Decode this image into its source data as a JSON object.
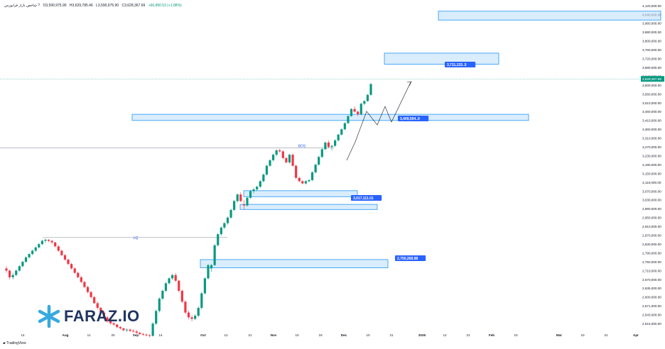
{
  "header": {
    "title": "شاخص بازار فرابورس ?",
    "open": "O3,590,975.90",
    "high": "H3,629,785.46",
    "low": "L3,590,975.90",
    "close": "C3,628,367.69",
    "change": "+66,890.53 (+1.88%)"
  },
  "branding": {
    "logo_text": "FARAZ.IO",
    "platform": "TradingView",
    "accent": "#1f3561",
    "logo_icon_color": "#36a9e1"
  },
  "colors": {
    "up": "#089981",
    "down": "#f23645",
    "zone_fill": "#bbdefb",
    "zone_border": "#2196f3",
    "label_bg": "#2962ff",
    "price_line": "#089981"
  },
  "chart_data": {
    "type": "candlestick",
    "ylim": [
      2500000,
      4140000
    ],
    "y_ticks": [
      "4,120,000.00",
      "4,040,000.00",
      "3,960,000.00",
      "3,880,000.00",
      "3,800,000.00",
      "3,760,000.00",
      "3,720,000.00",
      "3,680,000.00",
      "3,640,000.00",
      "3,600,000.00",
      "3,560,000.00",
      "3,510,000.00",
      "3,460,000.00",
      "3,410,000.00",
      "3,360,000.00",
      "3,310,000.00",
      "3,270,000.00",
      "3,230,000.00",
      "3,190,000.00",
      "3,150,000.00",
      "3,110,000.00",
      "3,070,000.00",
      "3,030,000.00",
      "2,990,000.00",
      "2,950,000.00",
      "2,910,000.00",
      "2,870,000.00",
      "2,830,000.00",
      "2,790,000.00",
      "2,750,000.00",
      "2,710,000.00",
      "2,670,000.00",
      "2,635,000.00",
      "2,600,000.00",
      "2,571,000.00",
      "2,543,000.00",
      "2,515,000.00"
    ],
    "x_ticks": [
      "14",
      "Aug",
      "11",
      "20",
      "Sep",
      "14",
      "Oct",
      "12",
      "21",
      "Nov",
      "10",
      "19",
      "Dec",
      "10",
      "21",
      "2026",
      "12",
      "21",
      "Feb",
      "10",
      "Mar",
      "10",
      "21",
      "Apr"
    ],
    "last_price": "3,628,367.69",
    "candles": [
      [
        2720000,
        2730000,
        2700000,
        2710000
      ],
      [
        2710000,
        2715000,
        2670000,
        2680000
      ],
      [
        2680000,
        2700000,
        2670000,
        2690000
      ],
      [
        2690000,
        2715000,
        2685000,
        2710000
      ],
      [
        2710000,
        2735000,
        2705000,
        2730000
      ],
      [
        2730000,
        2755000,
        2725000,
        2750000
      ],
      [
        2750000,
        2775000,
        2745000,
        2770000
      ],
      [
        2770000,
        2790000,
        2765000,
        2785000
      ],
      [
        2785000,
        2805000,
        2780000,
        2800000
      ],
      [
        2800000,
        2820000,
        2795000,
        2815000
      ],
      [
        2815000,
        2835000,
        2810000,
        2830000
      ],
      [
        2830000,
        2850000,
        2825000,
        2845000
      ],
      [
        2845000,
        2855000,
        2835000,
        2850000
      ],
      [
        2850000,
        2852000,
        2838000,
        2845000
      ],
      [
        2845000,
        2848000,
        2830000,
        2838000
      ],
      [
        2838000,
        2840000,
        2815000,
        2820000
      ],
      [
        2820000,
        2825000,
        2795000,
        2800000
      ],
      [
        2800000,
        2805000,
        2775000,
        2780000
      ],
      [
        2780000,
        2785000,
        2755000,
        2760000
      ],
      [
        2760000,
        2765000,
        2735000,
        2740000
      ],
      [
        2740000,
        2745000,
        2715000,
        2720000
      ],
      [
        2720000,
        2725000,
        2695000,
        2700000
      ],
      [
        2700000,
        2705000,
        2675000,
        2680000
      ],
      [
        2680000,
        2685000,
        2655000,
        2660000
      ],
      [
        2660000,
        2665000,
        2635000,
        2640000
      ],
      [
        2640000,
        2645000,
        2615000,
        2620000
      ],
      [
        2620000,
        2625000,
        2595000,
        2600000
      ],
      [
        2600000,
        2605000,
        2578000,
        2580000
      ],
      [
        2580000,
        2585000,
        2560000,
        2565000
      ],
      [
        2565000,
        2568000,
        2545000,
        2550000
      ],
      [
        2550000,
        2555000,
        2530000,
        2535000
      ],
      [
        2535000,
        2540000,
        2518000,
        2522000
      ],
      [
        2522000,
        2528000,
        2512000,
        2516000
      ],
      [
        2516000,
        2520000,
        2508000,
        2512000
      ],
      [
        2512000,
        2514000,
        2500000,
        2504000
      ],
      [
        2504000,
        2508000,
        2496000,
        2500000
      ],
      [
        2500000,
        2502000,
        2490000,
        2494000
      ],
      [
        2494000,
        2500000,
        2488000,
        2496000
      ],
      [
        2496000,
        2500000,
        2488000,
        2492000
      ],
      [
        2492000,
        2498000,
        2486000,
        2490000
      ],
      [
        2490000,
        2495000,
        2482000,
        2486000
      ],
      [
        2486000,
        2490000,
        2478000,
        2482000
      ],
      [
        2482000,
        2486000,
        2476000,
        2480000
      ],
      [
        2480000,
        2484000,
        2474000,
        2478000
      ],
      [
        2478000,
        2482000,
        2472000,
        2476000
      ],
      [
        2476000,
        2520000,
        2474000,
        2515000
      ],
      [
        2515000,
        2560000,
        2510000,
        2555000
      ],
      [
        2555000,
        2600000,
        2550000,
        2595000
      ],
      [
        2595000,
        2630000,
        2590000,
        2625000
      ],
      [
        2625000,
        2660000,
        2620000,
        2655000
      ],
      [
        2655000,
        2680000,
        2650000,
        2675000
      ],
      [
        2675000,
        2695000,
        2668000,
        2690000
      ],
      [
        2690000,
        2700000,
        2660000,
        2665000
      ],
      [
        2665000,
        2668000,
        2620000,
        2625000
      ],
      [
        2625000,
        2630000,
        2580000,
        2585000
      ],
      [
        2585000,
        2590000,
        2545000,
        2550000
      ],
      [
        2550000,
        2556000,
        2528000,
        2535000
      ],
      [
        2535000,
        2542000,
        2522000,
        2530000
      ],
      [
        2530000,
        2545000,
        2526000,
        2540000
      ],
      [
        2540000,
        2570000,
        2536000,
        2565000
      ],
      [
        2565000,
        2620000,
        2560000,
        2615000
      ],
      [
        2615000,
        2680000,
        2610000,
        2675000
      ],
      [
        2675000,
        2740000,
        2670000,
        2735000
      ],
      [
        2720000,
        2740000,
        2705000,
        2735000
      ],
      [
        2735000,
        2830000,
        2730000,
        2825000
      ],
      [
        2825000,
        2880000,
        2820000,
        2875000
      ],
      [
        2875000,
        2910000,
        2868000,
        2905000
      ],
      [
        2905000,
        2930000,
        2898000,
        2925000
      ],
      [
        2925000,
        2955000,
        2918000,
        2950000
      ],
      [
        2950000,
        2990000,
        2945000,
        2985000
      ],
      [
        2985000,
        3030000,
        2980000,
        3025000
      ],
      [
        3025000,
        3060000,
        3018000,
        3055000
      ],
      [
        3055000,
        3065000,
        3020000,
        3025000
      ],
      [
        3010000,
        3030000,
        2985000,
        3005000
      ],
      [
        3005000,
        3045000,
        3000000,
        3040000
      ],
      [
        3040000,
        3075000,
        3035000,
        3070000
      ],
      [
        3070000,
        3085000,
        3060000,
        3078000
      ],
      [
        3078000,
        3095000,
        3070000,
        3090000
      ],
      [
        3090000,
        3120000,
        3085000,
        3115000
      ],
      [
        3115000,
        3150000,
        3110000,
        3145000
      ],
      [
        3145000,
        3190000,
        3140000,
        3185000
      ],
      [
        3185000,
        3215000,
        3180000,
        3210000
      ],
      [
        3210000,
        3240000,
        3205000,
        3235000
      ],
      [
        3235000,
        3260000,
        3228000,
        3255000
      ],
      [
        3255000,
        3262000,
        3245000,
        3250000
      ],
      [
        3250000,
        3255000,
        3215000,
        3220000
      ],
      [
        3220000,
        3225000,
        3195000,
        3200000
      ],
      [
        3200000,
        3240000,
        3195000,
        3235000
      ],
      [
        3235000,
        3240000,
        3180000,
        3185000
      ],
      [
        3185000,
        3190000,
        3125000,
        3130000
      ],
      [
        3130000,
        3135000,
        3110000,
        3115000
      ],
      [
        3115000,
        3120000,
        3100000,
        3105000
      ],
      [
        3105000,
        3120000,
        3100000,
        3115000
      ],
      [
        3115000,
        3125000,
        3110000,
        3120000
      ],
      [
        3120000,
        3160000,
        3115000,
        3155000
      ],
      [
        3155000,
        3195000,
        3150000,
        3190000
      ],
      [
        3190000,
        3230000,
        3185000,
        3225000
      ],
      [
        3225000,
        3265000,
        3220000,
        3260000
      ],
      [
        3260000,
        3295000,
        3255000,
        3290000
      ],
      [
        3290000,
        3300000,
        3265000,
        3270000
      ],
      [
        3270000,
        3280000,
        3255000,
        3275000
      ],
      [
        3275000,
        3305000,
        3270000,
        3300000
      ],
      [
        3300000,
        3335000,
        3295000,
        3330000
      ],
      [
        3330000,
        3365000,
        3325000,
        3360000
      ],
      [
        3360000,
        3400000,
        3355000,
        3395000
      ],
      [
        3395000,
        3440000,
        3390000,
        3435000
      ],
      [
        3435000,
        3480000,
        3430000,
        3475000
      ],
      [
        3475000,
        3490000,
        3455000,
        3460000
      ],
      [
        3460000,
        3465000,
        3435000,
        3445000
      ],
      [
        3445000,
        3510000,
        3440000,
        3505000
      ],
      [
        3505000,
        3525000,
        3495000,
        3520000
      ],
      [
        3520000,
        3560000,
        3515000,
        3555000
      ],
      [
        3555000,
        3610000,
        3550000,
        3605000
      ]
    ],
    "zones": [
      {
        "label": "",
        "from_ts": "Jan 1",
        "to_ts": "Feb",
        "high": 4070000,
        "low": 3990000
      },
      {
        "label": "3,711,133..5",
        "high": 3745000,
        "low": 3695000
      },
      {
        "label": "3,409,594..9",
        "high": 3445000,
        "low": 3410000
      },
      {
        "label": "3,017,111.01",
        "high": 3072000,
        "low": 3045000
      },
      {
        "label": "",
        "high": 3010000,
        "low": 2987000
      },
      {
        "label": "2,750,268.98",
        "high": 2760000,
        "low": 2723000
      }
    ],
    "markers": [
      {
        "label": "BOS",
        "price": 3266000
      },
      {
        "label": "LQ",
        "price": 2860000
      }
    ]
  }
}
